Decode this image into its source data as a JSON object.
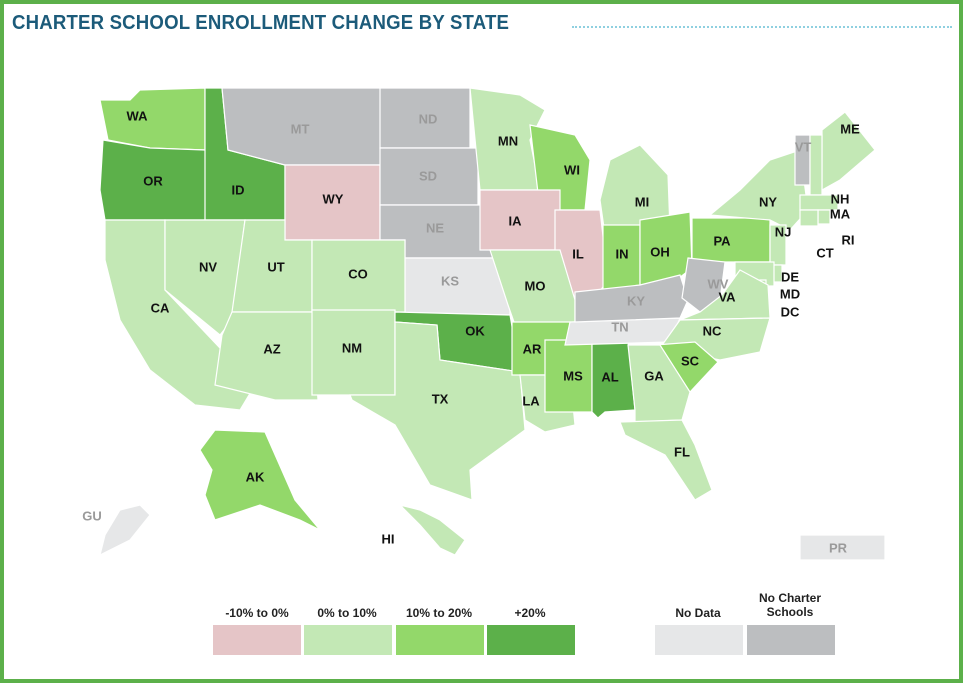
{
  "title": "CHARTER SCHOOL ENROLLMENT CHANGE BY STATE",
  "colors": {
    "neg": "#e5c5c7",
    "low": "#c3e8b5",
    "mid": "#93d86a",
    "high": "#5cb04a",
    "nodata": "#e6e7e8",
    "none": "#bcbec0",
    "border": "#5cb04a",
    "title": "#1c5b7a"
  },
  "legend": [
    {
      "key": "neg",
      "label": "-10% to 0%"
    },
    {
      "key": "low",
      "label": "0% to 10%"
    },
    {
      "key": "mid",
      "label": "10% to 20%"
    },
    {
      "key": "high",
      "label": "+20%"
    },
    {
      "key": "nodata",
      "label": "No Data"
    },
    {
      "key": "none",
      "label": "No Charter Schools"
    }
  ],
  "states": {
    "WA": "mid",
    "OR": "high",
    "ID": "high",
    "MT": "none",
    "WY": "neg",
    "ND": "none",
    "SD": "none",
    "NE": "none",
    "KS": "nodata",
    "MN": "low",
    "WI": "mid",
    "IA": "neg",
    "IL": "neg",
    "MI": "low",
    "IN": "mid",
    "OH": "mid",
    "PA": "mid",
    "NY": "low",
    "VT": "none",
    "ME": "low",
    "NH": "low",
    "MA": "low",
    "RI": "low",
    "CT": "low",
    "NJ": "low",
    "DE": "low",
    "MD": "low",
    "DC": "low",
    "CA": "low",
    "NV": "low",
    "UT": "low",
    "CO": "low",
    "AZ": "low",
    "NM": "low",
    "OK": "high",
    "TX": "low",
    "MO": "low",
    "AR": "mid",
    "LA": "low",
    "MS": "mid",
    "AL": "high",
    "TN": "nodata",
    "KY": "none",
    "WV": "none",
    "VA": "low",
    "NC": "low",
    "SC": "mid",
    "GA": "low",
    "FL": "low",
    "AK": "mid",
    "HI": "low",
    "GU": "nodata",
    "PR": "nodata"
  }
}
